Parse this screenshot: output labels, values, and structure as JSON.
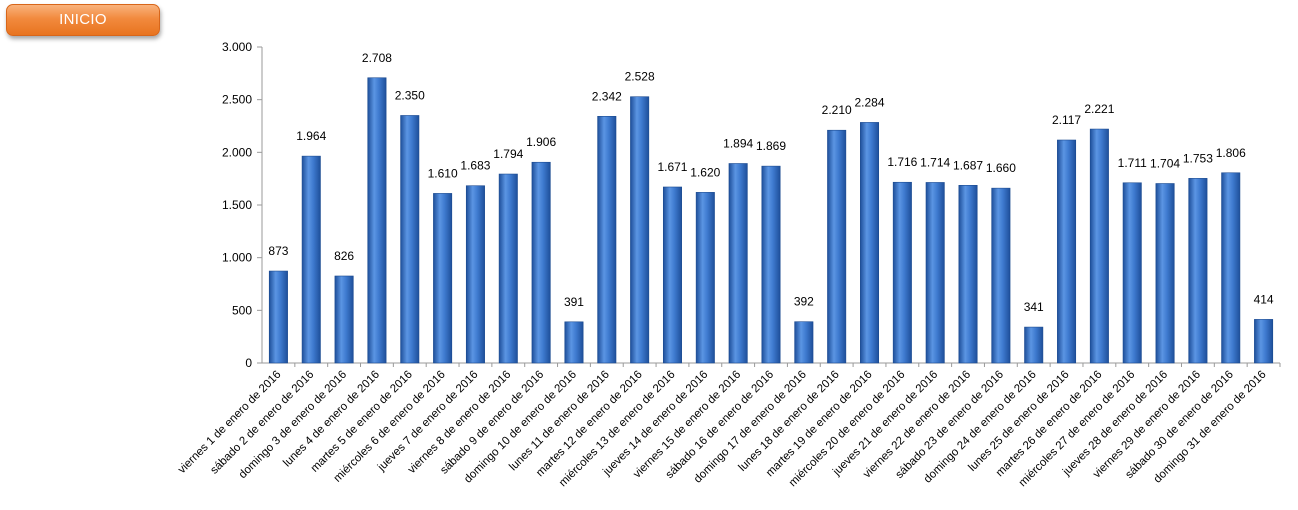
{
  "nav": {
    "inicio_label": "INICIO"
  },
  "colors": {
    "bar": "#3f7bd0",
    "bar_dark": "#1e4f9a",
    "button": "#f28a3e",
    "axis": "#9a9a9a"
  },
  "chart_data": {
    "type": "bar",
    "title": "",
    "xlabel": "",
    "ylabel": "",
    "ylim": [
      0,
      3000
    ],
    "y_ticks": [
      0,
      500,
      1000,
      1500,
      2000,
      2500,
      3000
    ],
    "y_tick_labels": [
      "0",
      "500",
      "1.000",
      "1.500",
      "2.000",
      "2.500",
      "3.000"
    ],
    "grid": false,
    "legend": "none",
    "categories": [
      "viernes 1 de enero de 2016",
      "sábado 2 de enero de 2016",
      "domingo 3 de enero de 2016",
      "lunes 4 de enero de 2016",
      "martes 5 de enero de 2016",
      "miércoles 6 de enero de 2016",
      "jueves 7 de enero de 2016",
      "viernes 8 de enero de 2016",
      "sábado 9 de enero de 2016",
      "domingo 10 de enero de 2016",
      "lunes 11 de enero de 2016",
      "martes 12 de enero de 2016",
      "miércoles 13 de enero de 2016",
      "jueves 14 de enero de 2016",
      "viernes 15 de enero de 2016",
      "sábado 16 de enero de 2016",
      "domingo 17 de enero de 2016",
      "lunes 18 de enero de 2016",
      "martes 19 de enero de 2016",
      "miércoles 20 de enero de 2016",
      "jueves 21 de enero de 2016",
      "viernes 22 de enero de 2016",
      "sábado 23 de enero de 2016",
      "domingo 24 de enero de 2016",
      "lunes 25 de enero de 2016",
      "martes 26 de enero de 2016",
      "miércoles 27 de enero de 2016",
      "jueves 28 de enero de 2016",
      "viernes 29 de enero de 2016",
      "sábado 30 de enero de 2016",
      "domingo 31 de enero de 2016"
    ],
    "values": [
      873,
      1964,
      826,
      2708,
      2350,
      1610,
      1683,
      1794,
      1906,
      391,
      2342,
      2528,
      1671,
      1620,
      1894,
      1869,
      392,
      2210,
      2284,
      1716,
      1714,
      1687,
      1660,
      341,
      2117,
      2221,
      1711,
      1704,
      1753,
      1806,
      414
    ],
    "value_labels": [
      "873",
      "1.964",
      "826",
      "2.708",
      "2.350",
      "1.610",
      "1.683",
      "1.794",
      "1.906",
      "391",
      "2.342",
      "2.528",
      "1.671",
      "1.620",
      "1.894",
      "1.869",
      "392",
      "2.210",
      "2.284",
      "1.716",
      "1.714",
      "1.687",
      "1.660",
      "341",
      "2.117",
      "2.221",
      "1.711",
      "1.704",
      "1.753",
      "1.806",
      "414"
    ]
  }
}
